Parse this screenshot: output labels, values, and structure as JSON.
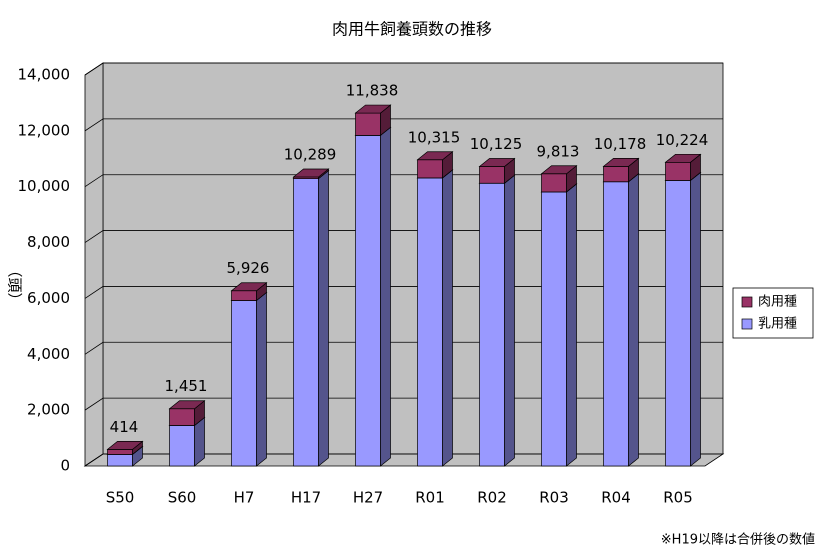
{
  "chart_data": {
    "type": "bar3d",
    "title": "肉用牛飼養頭数の推移",
    "y_label": "（頭）",
    "note": "※H19以降は合併後の数値",
    "categories": [
      "S50",
      "S60",
      "H7",
      "H17",
      "H27",
      "R01",
      "R02",
      "R03",
      "R04",
      "R05"
    ],
    "series": [
      {
        "name": "肉用種",
        "color": "#993366",
        "values": [
          180,
          600,
          350,
          60,
          800,
          650,
          600,
          650,
          550,
          650
        ]
      },
      {
        "name": "乳用種",
        "color": "#9999ff",
        "values": [
          414,
          1451,
          5926,
          10289,
          11838,
          10315,
          10125,
          9813,
          10178,
          10224
        ],
        "value_labels": [
          "414",
          "1,451",
          "5,926",
          "10,289",
          "11,838",
          "10,315",
          "10,125",
          "9,813",
          "10,178",
          "10,224"
        ]
      }
    ],
    "ylim": [
      0,
      14000
    ],
    "yticks": [
      0,
      {
        "value": 2000,
        "label": "2,000"
      },
      {
        "value": 4000,
        "label": "4,000"
      },
      {
        "value": 6000,
        "label": "6,000"
      },
      {
        "value": 8000,
        "label": "8,000"
      },
      {
        "value": 10000,
        "label": "10,000"
      },
      {
        "value": 12000,
        "label": "12,000"
      },
      {
        "value": 14000,
        "label": "14,000"
      }
    ],
    "grid": true,
    "legend": "right"
  }
}
